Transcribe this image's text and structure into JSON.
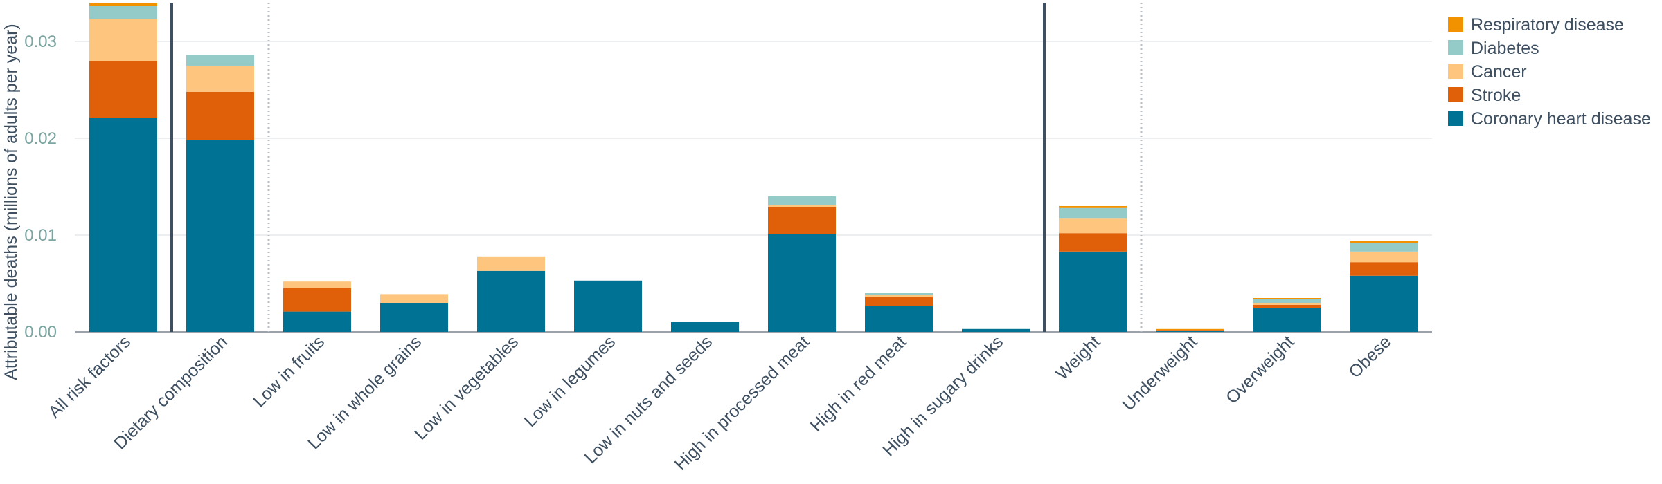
{
  "chart_data": {
    "type": "bar",
    "stacked": true,
    "ylabel": "Attributable deaths (millions of adults per year)",
    "ylim": [
      0,
      0.034
    ],
    "yticks": [
      "0.00",
      "0.01",
      "0.02",
      "0.03"
    ],
    "grid": true,
    "legend_position": "top-right",
    "categories": [
      "All risk factors",
      "Dietary composition",
      "Low in fruits",
      "Low in whole grains",
      "Low in vegetables",
      "Low in legumes",
      "Low in nuts and seeds",
      "High in processed meat",
      "High in red meat",
      "High in sugary drinks",
      "Weight",
      "Underweight",
      "Overweight",
      "Obese"
    ],
    "series": [
      {
        "name": "Coronary heart disease",
        "color": "#007294",
        "values": [
          0.0221,
          0.0198,
          0.0021,
          0.003,
          0.0063,
          0.0053,
          0.001,
          0.0101,
          0.0027,
          0.0003,
          0.0083,
          0.0001,
          0.0025,
          0.0058
        ]
      },
      {
        "name": "Stroke",
        "color": "#e0600a",
        "values": [
          0.0059,
          0.005,
          0.0024,
          0.0,
          0.0,
          0.0,
          0.0,
          0.0028,
          0.0009,
          0.0,
          0.0019,
          0.0001,
          0.0003,
          0.0014
        ]
      },
      {
        "name": "Cancer",
        "color": "#fdc57e",
        "values": [
          0.0043,
          0.0027,
          0.0007,
          0.0009,
          0.0015,
          0.0,
          0.0,
          0.0002,
          0.0002,
          0.0,
          0.0015,
          0.0,
          0.0002,
          0.0011
        ]
      },
      {
        "name": "Diabetes",
        "color": "#94cac8",
        "values": [
          0.0014,
          0.0011,
          0.0,
          0.0,
          0.0,
          0.0,
          0.0,
          0.0009,
          0.0002,
          0.0,
          0.0011,
          0.0,
          0.0004,
          0.0009
        ]
      },
      {
        "name": "Respiratory disease",
        "color": "#f39200",
        "values": [
          0.0003,
          0.0,
          0.0,
          0.0,
          0.0,
          0.0,
          0.0,
          0.0,
          0.0,
          0.0,
          0.0002,
          0.0001,
          0.0001,
          0.0002
        ]
      }
    ],
    "legend_order": [
      "Respiratory disease",
      "Diabetes",
      "Cancer",
      "Stroke",
      "Coronary heart disease"
    ],
    "separators": [
      {
        "after_category": 0,
        "style": "solid"
      },
      {
        "after_category": 1,
        "style": "dotted"
      },
      {
        "after_category": 9,
        "style": "solid"
      },
      {
        "after_category": 10,
        "style": "dotted"
      }
    ]
  }
}
